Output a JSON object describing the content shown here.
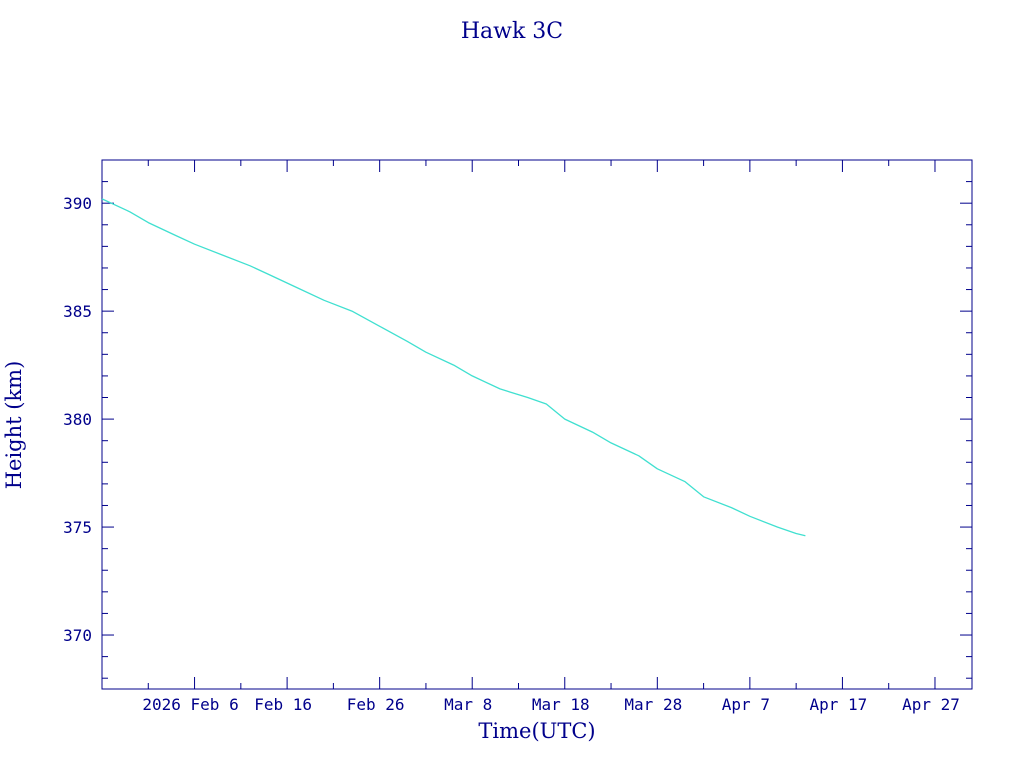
{
  "chart_data": {
    "type": "line",
    "title": "Hawk 3C",
    "xlabel": "Time(UTC)",
    "ylabel": "Height (km)",
    "xlim": [
      "2026-01-27",
      "2026-05-01"
    ],
    "ylim": [
      367.5,
      392
    ],
    "x_ticks": [
      {
        "date": "2026-02-06",
        "label": "2026 Feb  6"
      },
      {
        "date": "2026-02-16",
        "label": "Feb 16"
      },
      {
        "date": "2026-02-26",
        "label": "Feb 26"
      },
      {
        "date": "2026-03-08",
        "label": "Mar  8"
      },
      {
        "date": "2026-03-18",
        "label": "Mar 18"
      },
      {
        "date": "2026-03-28",
        "label": "Mar 28"
      },
      {
        "date": "2026-04-07",
        "label": "Apr  7"
      },
      {
        "date": "2026-04-17",
        "label": "Apr 17"
      },
      {
        "date": "2026-04-27",
        "label": "Apr 27"
      }
    ],
    "y_ticks": [
      {
        "value": 370,
        "label": "370"
      },
      {
        "value": 375,
        "label": "375"
      },
      {
        "value": 380,
        "label": "380"
      },
      {
        "value": 385,
        "label": "385"
      },
      {
        "value": 390,
        "label": "390"
      }
    ],
    "grid": false,
    "line_color": "#40e0d0",
    "axis_color": "#00008b",
    "series": [
      {
        "x": [
          "2026-01-27",
          "2026-01-30",
          "2026-02-01",
          "2026-02-04",
          "2026-02-06",
          "2026-02-09",
          "2026-02-12",
          "2026-02-14",
          "2026-02-17",
          "2026-02-20",
          "2026-02-23",
          "2026-02-26",
          "2026-03-01",
          "2026-03-03",
          "2026-03-06",
          "2026-03-08",
          "2026-03-11",
          "2026-03-14",
          "2026-03-16",
          "2026-03-18",
          "2026-03-21",
          "2026-03-23",
          "2026-03-26",
          "2026-03-28",
          "2026-03-31",
          "2026-04-02",
          "2026-04-05",
          "2026-04-07",
          "2026-04-10",
          "2026-04-12",
          "2026-04-13"
        ],
        "y": [
          390.2,
          389.6,
          389.1,
          388.5,
          388.1,
          387.6,
          387.1,
          386.7,
          386.1,
          385.5,
          385.0,
          384.3,
          383.6,
          383.1,
          382.5,
          382.0,
          381.4,
          381.0,
          380.7,
          380.0,
          379.4,
          378.9,
          378.3,
          377.7,
          377.1,
          376.4,
          375.9,
          375.5,
          375.0,
          374.7,
          374.6
        ]
      }
    ]
  }
}
